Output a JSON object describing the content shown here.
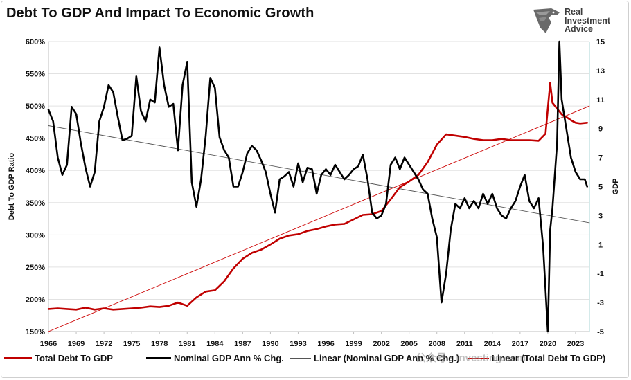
{
  "header": {
    "title": "Debt To GDP And Impact To Economic Growth",
    "logo": {
      "line1": "Real",
      "line2": "Investment",
      "line3": "Advice",
      "icon": "eagle-head-icon"
    }
  },
  "watermark": "公众号 · investing.com",
  "chart_data": {
    "type": "line",
    "title": "Debt To GDP And Impact To Economic Growth",
    "ylabel": "Debt To GDP Ratio",
    "y2label": "GDP",
    "ylim": [
      150,
      600
    ],
    "y2lim": [
      -5,
      15
    ],
    "xlim": [
      1966,
      2024.5
    ],
    "x_ticks": [
      1966,
      1969,
      1972,
      1975,
      1978,
      1981,
      1984,
      1987,
      1990,
      1993,
      1996,
      1999,
      2002,
      2005,
      2008,
      2011,
      2014,
      2017,
      2020,
      2023
    ],
    "y_ticks": [
      "150%",
      "200%",
      "250%",
      "300%",
      "350%",
      "400%",
      "450%",
      "500%",
      "550%",
      "600%"
    ],
    "y2_ticks": [
      "-5",
      "-3",
      "-1",
      "1",
      "3",
      "5",
      "7",
      "9",
      "11",
      "13",
      "15"
    ],
    "grid": "horizontal",
    "colors": {
      "debt": "#c00000",
      "gdp": "#000000",
      "trend_gdp": "#555555",
      "trend_debt": "#cc0000"
    },
    "series": [
      {
        "name": "Total Debt To GDP",
        "axis": "left",
        "x": [
          1966,
          1967,
          1968,
          1969,
          1970,
          1971,
          1972,
          1973,
          1974,
          1975,
          1976,
          1977,
          1978,
          1979,
          1980,
          1981,
          1982,
          1983,
          1984,
          1985,
          1986,
          1987,
          1988,
          1989,
          1990,
          1991,
          1992,
          1993,
          1994,
          1995,
          1996,
          1997,
          1998,
          1999,
          2000,
          2001,
          2002,
          2003,
          2004,
          2005,
          2006,
          2007,
          2008,
          2009,
          2010,
          2011,
          2012,
          2013,
          2014,
          2015,
          2016,
          2017,
          2018,
          2019,
          2019.75,
          2020.25,
          2020.5,
          2021,
          2021.5,
          2022,
          2022.5,
          2023,
          2023.5,
          2024.25
        ],
        "values": [
          185,
          186,
          185,
          184,
          187,
          184,
          186,
          184,
          185,
          186,
          187,
          189,
          188,
          190,
          195,
          190,
          203,
          212,
          214,
          228,
          248,
          263,
          272,
          277,
          285,
          294,
          299,
          301,
          306,
          309,
          313,
          316,
          317,
          324,
          331,
          332,
          337,
          355,
          374,
          383,
          393,
          413,
          440,
          456,
          454,
          452,
          449,
          447,
          447,
          449,
          447,
          447,
          447,
          446,
          457,
          536,
          505,
          496,
          487,
          483,
          478,
          474,
          473,
          474
        ]
      },
      {
        "name": "Nominal GDP Ann % Chg.",
        "axis": "right",
        "x": [
          1966,
          1966.5,
          1967,
          1967.5,
          1968,
          1968.5,
          1969,
          1969.5,
          1970,
          1970.5,
          1971,
          1971.5,
          1972,
          1972.5,
          1973,
          1973.5,
          1974,
          1974.5,
          1975,
          1975.5,
          1976,
          1976.5,
          1977,
          1977.5,
          1978,
          1978.5,
          1979,
          1979.5,
          1980,
          1980.5,
          1981,
          1981.5,
          1982,
          1982.5,
          1983,
          1983.5,
          1984,
          1984.5,
          1985,
          1985.5,
          1986,
          1986.5,
          1987,
          1987.5,
          1988,
          1988.5,
          1989,
          1989.5,
          1990,
          1990.5,
          1991,
          1991.5,
          1992,
          1992.5,
          1993,
          1993.5,
          1994,
          1994.5,
          1995,
          1995.5,
          1996,
          1996.5,
          1997,
          1997.5,
          1998,
          1998.5,
          1999,
          1999.5,
          2000,
          2000.5,
          2001,
          2001.5,
          2002,
          2002.5,
          2003,
          2003.5,
          2004,
          2004.5,
          2005,
          2005.5,
          2006,
          2006.5,
          2007,
          2007.5,
          2008,
          2008.5,
          2009,
          2009.5,
          2010,
          2010.5,
          2011,
          2011.5,
          2012,
          2012.5,
          2013,
          2013.5,
          2014,
          2014.5,
          2015,
          2015.5,
          2016,
          2016.5,
          2017,
          2017.5,
          2018,
          2018.5,
          2019,
          2019.5,
          2020,
          2020.25,
          2020.5,
          2021,
          2021.25,
          2021.5,
          2022,
          2022.5,
          2023,
          2023.5,
          2024,
          2024.25
        ],
        "values": [
          10.3,
          9.5,
          7.0,
          5.8,
          6.5,
          10.5,
          10.0,
          8.0,
          6.3,
          5.0,
          6.0,
          9.5,
          10.5,
          12.0,
          11.5,
          9.8,
          8.2,
          8.3,
          8.5,
          12.6,
          10.2,
          9.5,
          11.0,
          10.8,
          14.6,
          12.0,
          10.5,
          10.7,
          7.5,
          12.0,
          13.6,
          5.3,
          3.6,
          5.5,
          8.5,
          12.5,
          11.8,
          8.4,
          7.5,
          7.0,
          5.0,
          5.0,
          6.0,
          7.3,
          7.8,
          7.5,
          6.8,
          6.0,
          4.5,
          3.2,
          5.5,
          5.7,
          6.0,
          5.0,
          6.6,
          5.3,
          6.3,
          6.2,
          4.5,
          5.8,
          6.2,
          5.8,
          6.5,
          6.0,
          5.5,
          5.8,
          6.2,
          6.4,
          7.2,
          5.5,
          3.2,
          2.8,
          3.0,
          3.8,
          6.5,
          7.0,
          6.2,
          7.0,
          6.5,
          6.0,
          5.5,
          4.8,
          4.5,
          2.8,
          1.5,
          -3.0,
          -1.0,
          2.0,
          3.8,
          3.5,
          4.2,
          3.5,
          4.0,
          3.5,
          4.5,
          3.8,
          4.5,
          3.5,
          3.0,
          2.8,
          3.5,
          4.0,
          5.0,
          5.8,
          4.0,
          3.5,
          4.2,
          0.8,
          -5.0,
          2.0,
          3.5,
          8.0,
          15.2,
          11.0,
          9.0,
          7.0,
          6.0,
          5.5,
          5.5,
          5.0
        ],
        "note_values_in_percent": "right axis values"
      },
      {
        "name": "Linear (Nominal GDP Ann % Chg.)",
        "axis": "right",
        "x": [
          1966,
          2024.5
        ],
        "values": [
          9.2,
          2.5
        ]
      },
      {
        "name": "Linear (Total Debt To GDP)",
        "axis": "left",
        "x": [
          1966,
          2024.5
        ],
        "values": [
          136,
          500
        ]
      }
    ]
  }
}
